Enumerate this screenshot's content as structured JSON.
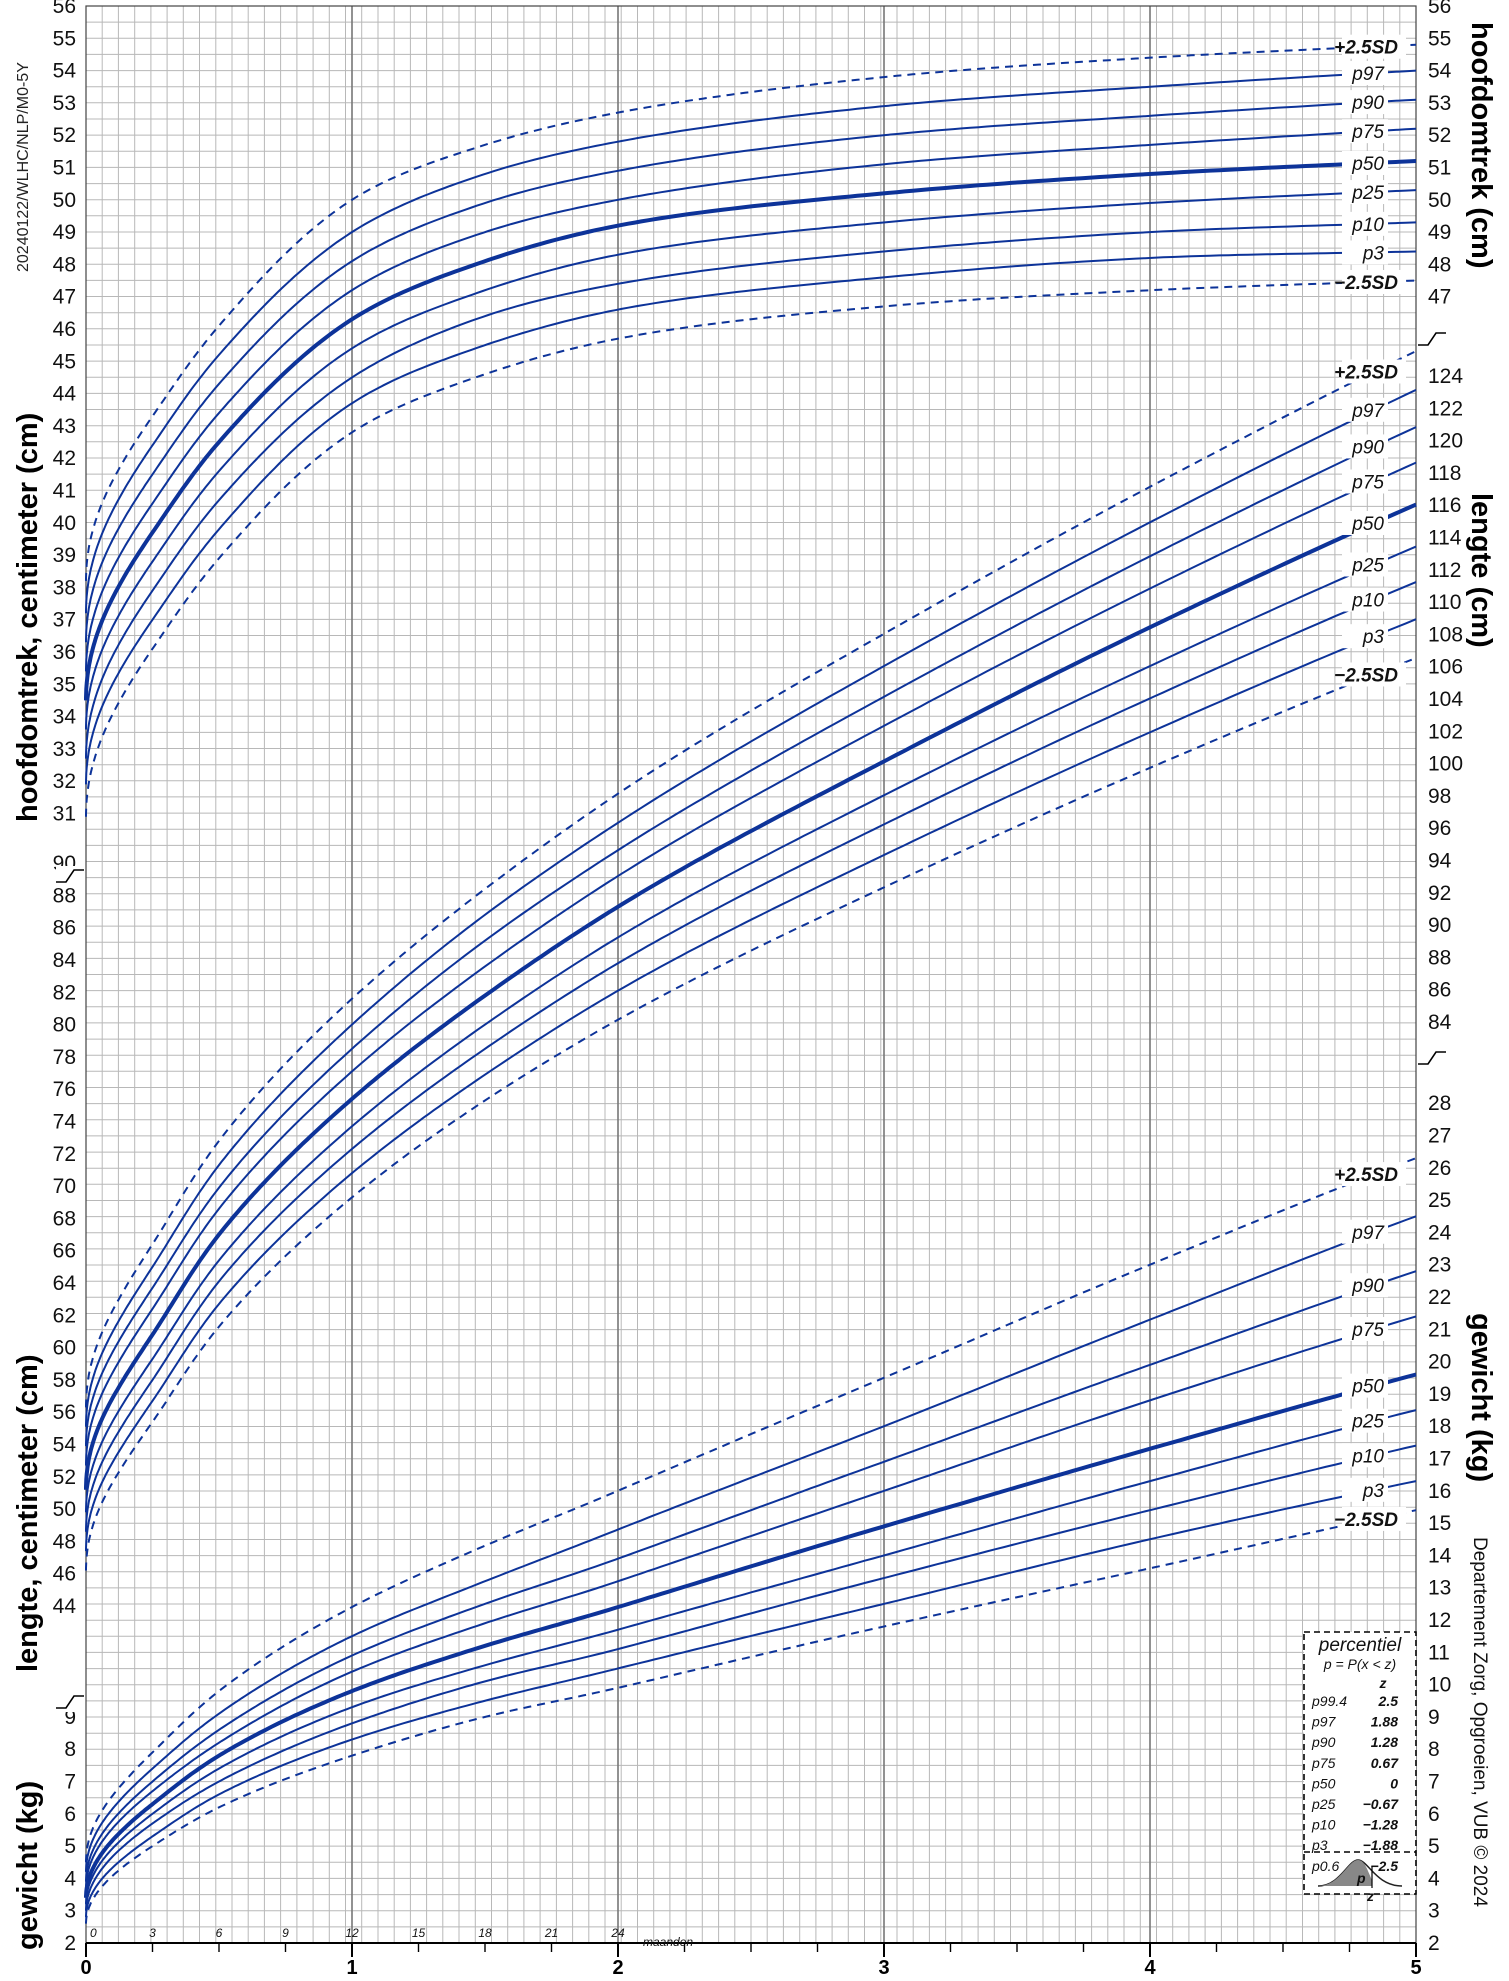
{
  "code": "20240122/WLHC/NLP/M0-5Y",
  "credit": "Departement Zorg, Opgroeien, VUB © 2024",
  "months_label": "maanden",
  "x_axis": {
    "range": [
      0,
      5
    ],
    "year_ticks": [
      "0",
      "1",
      "2",
      "3",
      "4",
      "5"
    ],
    "month_ticks": [
      "0",
      "3",
      "6",
      "9",
      "12",
      "15",
      "18",
      "21",
      "24"
    ]
  },
  "left_labels": {
    "head": "hoofdomtrek, centimeter (cm)",
    "length": "lengte, centimeter (cm)",
    "weight": "gewicht (kg)"
  },
  "right_labels": {
    "head": "hoofdomtrek (cm)",
    "length": "lengte (cm)",
    "weight": "gewicht (kg)"
  },
  "legend": {
    "title": "percentiel",
    "formula": "p = P(x < z)",
    "z_header": "z",
    "rows": [
      {
        "p": "p99.4",
        "z": "2.5"
      },
      {
        "p": "p97",
        "z": "1.88"
      },
      {
        "p": "p90",
        "z": "1.28"
      },
      {
        "p": "p75",
        "z": "0.67"
      },
      {
        "p": "p50",
        "z": "0"
      },
      {
        "p": "p25",
        "z": "−0.67"
      },
      {
        "p": "p10",
        "z": "−1.28"
      },
      {
        "p": "p3",
        "z": "−1.88"
      },
      {
        "p": "p0.6",
        "z": "−2.5"
      }
    ],
    "bell_p": "p",
    "bell_z": "z"
  },
  "colors": {
    "curve": "#0d3399",
    "grid": "#b8b8b8",
    "major": "#777777"
  },
  "chart_data": [
    {
      "type": "line",
      "name_label": "hoofdomtrek",
      "unit": "cm",
      "x": [
        0,
        0.25,
        0.5,
        1,
        1.5,
        2,
        3,
        4,
        5
      ],
      "left_ticks": [
        "31",
        "32",
        "33",
        "34",
        "35",
        "36",
        "37",
        "38",
        "39",
        "40",
        "41",
        "42",
        "43",
        "44",
        "45",
        "46",
        "47",
        "48",
        "49",
        "50",
        "51",
        "52",
        "53",
        "54",
        "55",
        "56"
      ],
      "right_ticks": [
        "47",
        "48",
        "49",
        "50",
        "51",
        "52",
        "53",
        "54",
        "55",
        "56"
      ],
      "series": [
        {
          "name": "+2.5SD",
          "dashed": true,
          "values": [
            38.2,
            43.3,
            46.1,
            50.0,
            51.7,
            52.7,
            53.8,
            54.4,
            54.8
          ]
        },
        {
          "name": "p97",
          "values": [
            37.2,
            42.4,
            45.2,
            49.0,
            50.8,
            51.8,
            52.9,
            53.5,
            54.0
          ]
        },
        {
          "name": "p90",
          "values": [
            36.3,
            41.5,
            44.3,
            48.1,
            49.9,
            50.9,
            52.0,
            52.6,
            53.1
          ]
        },
        {
          "name": "p75",
          "values": [
            35.4,
            40.6,
            43.4,
            47.2,
            49.0,
            50.0,
            51.1,
            51.7,
            52.2
          ]
        },
        {
          "name": "p50",
          "bold": true,
          "values": [
            34.5,
            39.7,
            42.5,
            46.3,
            48.1,
            49.2,
            50.2,
            50.8,
            51.2
          ]
        },
        {
          "name": "p25",
          "values": [
            33.6,
            38.8,
            41.6,
            45.4,
            47.2,
            48.3,
            49.3,
            49.9,
            50.3
          ]
        },
        {
          "name": "p10",
          "values": [
            32.7,
            37.9,
            40.7,
            44.5,
            46.4,
            47.4,
            48.4,
            49.0,
            49.3
          ]
        },
        {
          "name": "p3",
          "values": [
            31.9,
            37.0,
            39.8,
            43.7,
            45.5,
            46.6,
            47.6,
            48.2,
            48.4
          ]
        },
        {
          "name": "−2.5SD",
          "dashed": true,
          "values": [
            30.9,
            36.1,
            38.9,
            42.8,
            44.6,
            45.7,
            46.7,
            47.2,
            47.5
          ]
        }
      ]
    },
    {
      "type": "line",
      "name_label": "lengte",
      "unit": "cm",
      "x": [
        0,
        0.25,
        0.5,
        1,
        1.5,
        2,
        3,
        4,
        5
      ],
      "left_ticks": [
        "44",
        "46",
        "48",
        "50",
        "52",
        "54",
        "56",
        "58",
        "60",
        "62",
        "64",
        "66",
        "68",
        "70",
        "72",
        "74",
        "76",
        "78",
        "80",
        "82",
        "84",
        "86",
        "88",
        "90"
      ],
      "right_ticks": [
        "84",
        "86",
        "88",
        "90",
        "92",
        "94",
        "96",
        "98",
        "100",
        "102",
        "104",
        "106",
        "108",
        "110",
        "112",
        "114",
        "116",
        "118",
        "120",
        "122",
        "124"
      ],
      "series": [
        {
          "name": "+2.5SD",
          "dashed": true,
          "values": [
            56.3,
            66.4,
            72.8,
            81.6,
            88.4,
            94.3,
            104.2,
            113.3,
            121.7
          ]
        },
        {
          "name": "p97",
          "values": [
            55.1,
            65.0,
            71.3,
            80.0,
            86.8,
            92.5,
            102.2,
            111.1,
            119.3
          ]
        },
        {
          "name": "p90",
          "values": [
            53.9,
            63.7,
            69.9,
            78.5,
            85.2,
            90.8,
            100.3,
            109.0,
            117.0
          ]
        },
        {
          "name": "p75",
          "values": [
            52.7,
            62.4,
            68.6,
            77.1,
            83.6,
            89.2,
            98.5,
            107.0,
            114.8
          ]
        },
        {
          "name": "p50",
          "bold": true,
          "values": [
            51.2,
            60.8,
            67.0,
            75.4,
            81.8,
            87.3,
            96.3,
            104.6,
            112.2
          ]
        },
        {
          "name": "p25",
          "values": [
            49.8,
            59.3,
            65.4,
            73.7,
            80.0,
            85.4,
            94.2,
            102.2,
            109.6
          ]
        },
        {
          "name": "p10",
          "values": [
            48.6,
            58.0,
            64.1,
            72.3,
            78.5,
            83.8,
            92.4,
            100.2,
            107.4
          ]
        },
        {
          "name": "p3",
          "values": [
            47.4,
            56.7,
            62.7,
            70.8,
            76.9,
            82.1,
            90.5,
            98.1,
            105.1
          ]
        },
        {
          "name": "−2.5SD",
          "dashed": true,
          "values": [
            46.2,
            55.4,
            61.3,
            69.3,
            75.3,
            80.3,
            88.5,
            95.9,
            102.7
          ]
        }
      ]
    },
    {
      "type": "line",
      "name_label": "gewicht",
      "unit": "kg",
      "x": [
        0,
        0.25,
        0.5,
        1,
        1.5,
        2,
        3,
        4,
        5
      ],
      "left_ticks": [
        "2",
        "3",
        "4",
        "5",
        "6",
        "7",
        "8",
        "9"
      ],
      "right_ticks": [
        "2",
        "3",
        "4",
        "5",
        "6",
        "7",
        "8",
        "9",
        "10",
        "11",
        "12",
        "13",
        "14",
        "15",
        "16",
        "17",
        "18",
        "19",
        "20",
        "21",
        "22",
        "23",
        "24",
        "25",
        "26",
        "27",
        "28"
      ],
      "series": [
        {
          "name": "+2.5SD",
          "dashed": true,
          "values": [
            4.5,
            7.9,
            9.8,
            12.4,
            14.3,
            16.0,
            19.5,
            23.0,
            26.3
          ]
        },
        {
          "name": "p97",
          "values": [
            4.2,
            7.4,
            9.1,
            11.5,
            13.2,
            14.8,
            18.0,
            21.3,
            24.5
          ]
        },
        {
          "name": "p90",
          "values": [
            3.9,
            7.0,
            8.6,
            10.9,
            12.5,
            13.9,
            16.9,
            19.9,
            22.8
          ]
        },
        {
          "name": "p75",
          "values": [
            3.7,
            6.7,
            8.2,
            10.4,
            11.9,
            13.2,
            16.0,
            18.8,
            21.4
          ]
        },
        {
          "name": "p50",
          "bold": true,
          "values": [
            3.4,
            6.3,
            7.8,
            9.8,
            11.2,
            12.4,
            14.9,
            17.3,
            19.6
          ]
        },
        {
          "name": "p25",
          "values": [
            3.2,
            6.0,
            7.4,
            9.3,
            10.6,
            11.7,
            14.0,
            16.3,
            18.5
          ]
        },
        {
          "name": "p10",
          "values": [
            3.0,
            5.7,
            7.0,
            8.8,
            10.1,
            11.1,
            13.3,
            15.4,
            17.4
          ]
        },
        {
          "name": "p3",
          "values": [
            2.8,
            5.3,
            6.6,
            8.3,
            9.5,
            10.5,
            12.5,
            14.5,
            16.3
          ]
        },
        {
          "name": "−2.5SD",
          "dashed": true,
          "values": [
            2.6,
            5.0,
            6.2,
            7.8,
            9.0,
            9.9,
            11.8,
            13.6,
            15.4
          ]
        }
      ]
    }
  ]
}
